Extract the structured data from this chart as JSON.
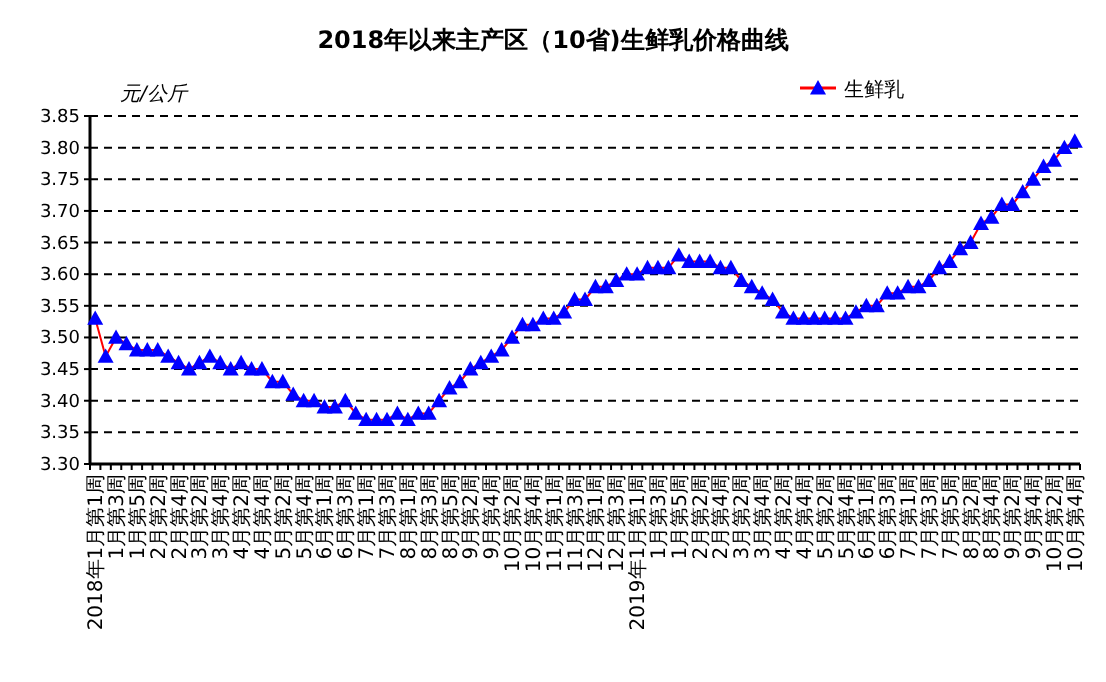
{
  "chart_data": {
    "type": "line",
    "title": "2018年以来主产区（10省)生鲜乳价格曲线",
    "ylabel": "元/公斤",
    "categories": [
      "2018年1月第1周",
      null,
      "1月第3周",
      null,
      "1月第5周",
      null,
      "2月第2周",
      null,
      "2月第4周",
      null,
      "3月第2周",
      null,
      "3月第4周",
      null,
      "4月第2周",
      null,
      "4月第4周",
      null,
      "5月第2周",
      null,
      "5月第4周",
      null,
      "6月第1周",
      null,
      "6月第3周",
      null,
      "7月第1周",
      null,
      "7月第3周",
      null,
      "8月第1周",
      null,
      "8月第3周",
      null,
      "8月第5周",
      null,
      "9月第2周",
      null,
      "9月第4周",
      null,
      "10月第2周",
      null,
      "10月第4周",
      null,
      "11月第1周",
      null,
      "11月第3周",
      null,
      "12月第1周",
      null,
      "12月第3周",
      null,
      "2019年1月第1周",
      null,
      "1月第3周",
      null,
      "1月第5周",
      null,
      "2月第2周",
      null,
      "2月第4周",
      null,
      "3月第2周",
      null,
      "3月第4周",
      null,
      "4月第2周",
      null,
      "4月第4周",
      null,
      "5月第2周",
      null,
      "5月第4周",
      null,
      "6月第1周",
      null,
      "6月第3周",
      null,
      "7月第1周",
      null,
      "7月第3周",
      null,
      "7月第5周",
      null,
      "8月第2周",
      null,
      "8月第4周",
      null,
      "9月第2周",
      null,
      "9月第4周",
      null,
      "10月第2周",
      null,
      "10月第4周"
    ],
    "series": [
      {
        "name": "生鲜乳",
        "color": "#0000ff",
        "values": [
          3.53,
          3.47,
          3.5,
          3.49,
          3.48,
          3.48,
          3.48,
          3.47,
          3.46,
          3.45,
          3.46,
          3.47,
          3.46,
          3.45,
          3.46,
          3.45,
          3.45,
          3.43,
          3.43,
          3.41,
          3.4,
          3.4,
          3.39,
          3.39,
          3.4,
          3.38,
          3.37,
          3.37,
          3.37,
          3.38,
          3.37,
          3.38,
          3.38,
          3.4,
          3.42,
          3.43,
          3.45,
          3.46,
          3.47,
          3.48,
          3.5,
          3.52,
          3.52,
          3.53,
          3.53,
          3.54,
          3.56,
          3.56,
          3.58,
          3.58,
          3.59,
          3.6,
          3.6,
          3.61,
          3.61,
          3.61,
          3.63,
          3.62,
          3.62,
          3.62,
          3.61,
          3.61,
          3.59,
          3.58,
          3.57,
          3.56,
          3.54,
          3.53,
          3.53,
          3.53,
          3.53,
          3.53,
          3.53,
          3.54,
          3.55,
          3.55,
          3.57,
          3.57,
          3.58,
          3.58,
          3.59,
          3.61,
          3.62,
          3.64,
          3.65,
          3.68,
          3.69,
          3.71,
          3.71,
          3.73,
          3.75,
          3.77,
          3.78,
          3.8,
          3.81
        ]
      }
    ],
    "ylim": [
      3.3,
      3.85
    ],
    "yticks": [
      {
        "value": 3.3,
        "label": "3.30"
      },
      {
        "value": 3.35,
        "label": "3.35"
      },
      {
        "value": 3.4,
        "label": "3.40"
      },
      {
        "value": 3.45,
        "label": "3.45"
      },
      {
        "value": 3.5,
        "label": "3.50"
      },
      {
        "value": 3.55,
        "label": "3.55"
      },
      {
        "value": 3.6,
        "label": "3.60"
      },
      {
        "value": 3.65,
        "label": "3.65"
      },
      {
        "value": 3.7,
        "label": "3.70"
      },
      {
        "value": 3.75,
        "label": "3.75"
      },
      {
        "value": 3.8,
        "label": "3.80"
      },
      {
        "value": 3.85,
        "label": "3.85"
      }
    ],
    "grid": "y",
    "legend": "top right",
    "marker": "triangle"
  }
}
